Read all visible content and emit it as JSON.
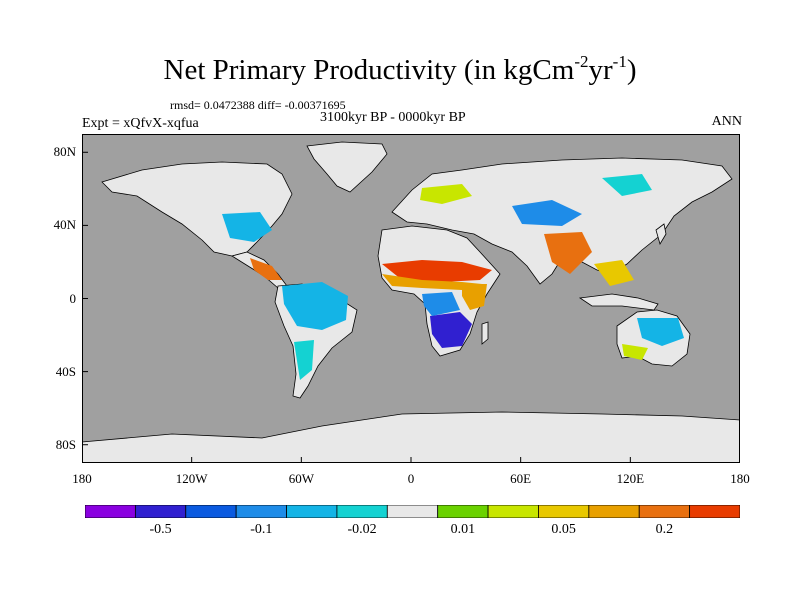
{
  "header": {
    "title_main": "Net Primary Productivity (in kgCm",
    "title_exp1": "-2",
    "title_mid": "yr",
    "title_exp2": "-1",
    "title_end": ")",
    "stats": "rmsd= 0.0472388 diff= -0.00371695",
    "period": "3100kyr BP - 0000kyr BP",
    "experiment": "Expt = xQfvX-xqfua",
    "season": "ANN"
  },
  "axes": {
    "lat_labels": [
      "80N",
      "40N",
      "0",
      "40S",
      "80S"
    ],
    "lat_values": [
      80,
      40,
      0,
      -40,
      -80
    ],
    "lon_labels": [
      "180",
      "120W",
      "60W",
      "0",
      "60E",
      "120E",
      "180"
    ],
    "lon_values": [
      -180,
      -120,
      -60,
      0,
      60,
      120,
      180
    ]
  },
  "colorbar": {
    "colors": [
      "#8a00e0",
      "#3020d0",
      "#0a5ae0",
      "#1e8ce8",
      "#14b4e6",
      "#14d2d2",
      "#e8e8e8",
      "#6ad200",
      "#c8e600",
      "#e8c800",
      "#e8a000",
      "#e87010",
      "#e83c00"
    ],
    "labels": [
      "-0.5",
      "-0.1",
      "-0.02",
      "0.01",
      "0.05",
      "0.2"
    ],
    "label_boundaries": [
      1,
      3,
      5,
      7,
      9,
      11
    ]
  },
  "map_colors": {
    "ocean": "#a0a0a0",
    "land_neutral": "#e8e8e8",
    "coast": "#000000"
  },
  "map_features": [
    {
      "region": "Greenland",
      "level": 6
    },
    {
      "region": "Antarctica",
      "level": 6
    },
    {
      "region": "Sahara",
      "level": 6
    },
    {
      "region": "Sahel",
      "level": 12
    },
    {
      "region": "East Africa",
      "level": 10
    },
    {
      "region": "Southern Africa",
      "level": 1
    },
    {
      "region": "Amazon",
      "level": 3
    },
    {
      "region": "Patagonia",
      "level": 5
    },
    {
      "region": "Eastern USA",
      "level": 5
    },
    {
      "region": "Central America",
      "level": 11
    },
    {
      "region": "India",
      "level": 11
    },
    {
      "region": "Central Asia",
      "level": 2
    },
    {
      "region": "Siberia",
      "level": 6
    },
    {
      "region": "Southeast Asia",
      "level": 9
    },
    {
      "region": "Australia North",
      "level": 5
    },
    {
      "region": "Australia South",
      "level": 8
    }
  ]
}
